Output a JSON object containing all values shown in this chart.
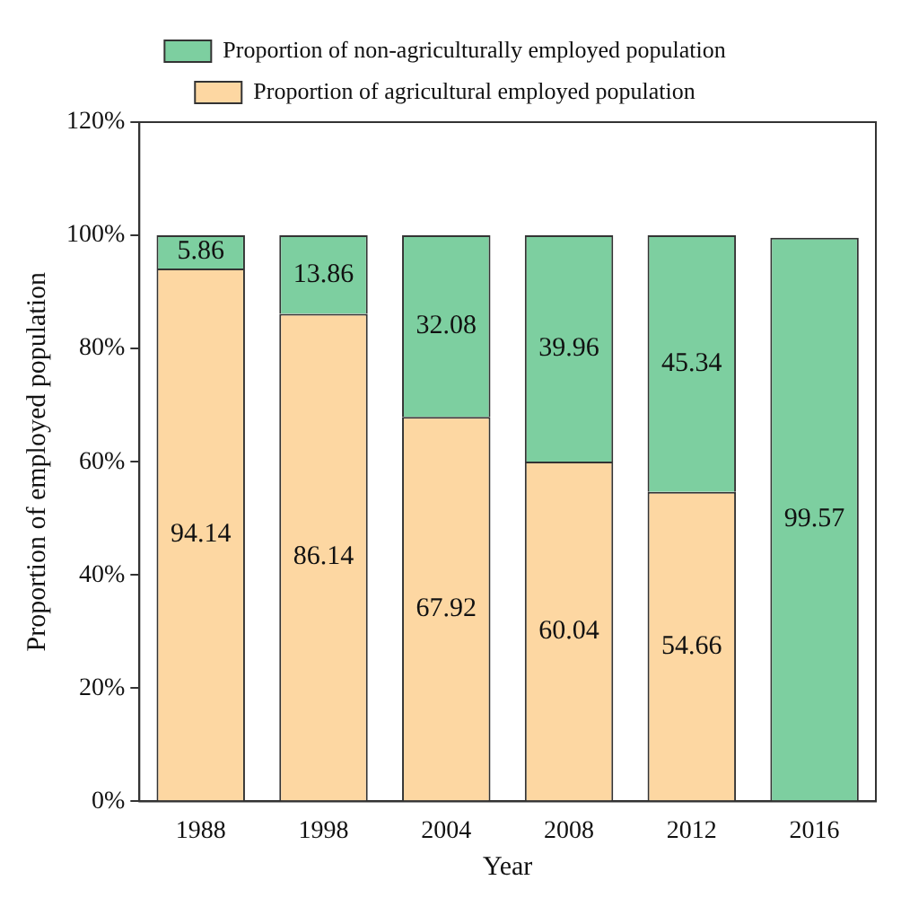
{
  "chart_data": {
    "type": "bar",
    "stacked": true,
    "xlabel": "Year",
    "ylabel": "Proportion of employed population",
    "categories": [
      "1988",
      "1998",
      "2004",
      "2008",
      "2012",
      "2016"
    ],
    "series": [
      {
        "name": "Proportion of agricultural employed population",
        "color": "#fdd7a2",
        "values": [
          94.14,
          86.14,
          67.92,
          60.04,
          54.66,
          null
        ],
        "value_labels": [
          "94.14",
          "86.14",
          "67.92",
          "60.04",
          "54.66",
          null
        ]
      },
      {
        "name": "Proportion of non-agriculturally employed population",
        "color": "#7dcfa0",
        "values": [
          5.86,
          13.86,
          32.08,
          39.96,
          45.34,
          99.57
        ],
        "value_labels": [
          "5.86",
          "13.86",
          "32.08",
          "39.96",
          "45.34",
          "99.57"
        ]
      }
    ],
    "ylim": [
      0,
      120
    ],
    "yticks": [
      {
        "value": 0,
        "label": "0%"
      },
      {
        "value": 20,
        "label": "20%"
      },
      {
        "value": 40,
        "label": "40%"
      },
      {
        "value": 60,
        "label": "60%"
      },
      {
        "value": 80,
        "label": "80%"
      },
      {
        "value": 100,
        "label": "100%"
      },
      {
        "value": 120,
        "label": "120%"
      }
    ],
    "grid": false,
    "legend": "top"
  }
}
